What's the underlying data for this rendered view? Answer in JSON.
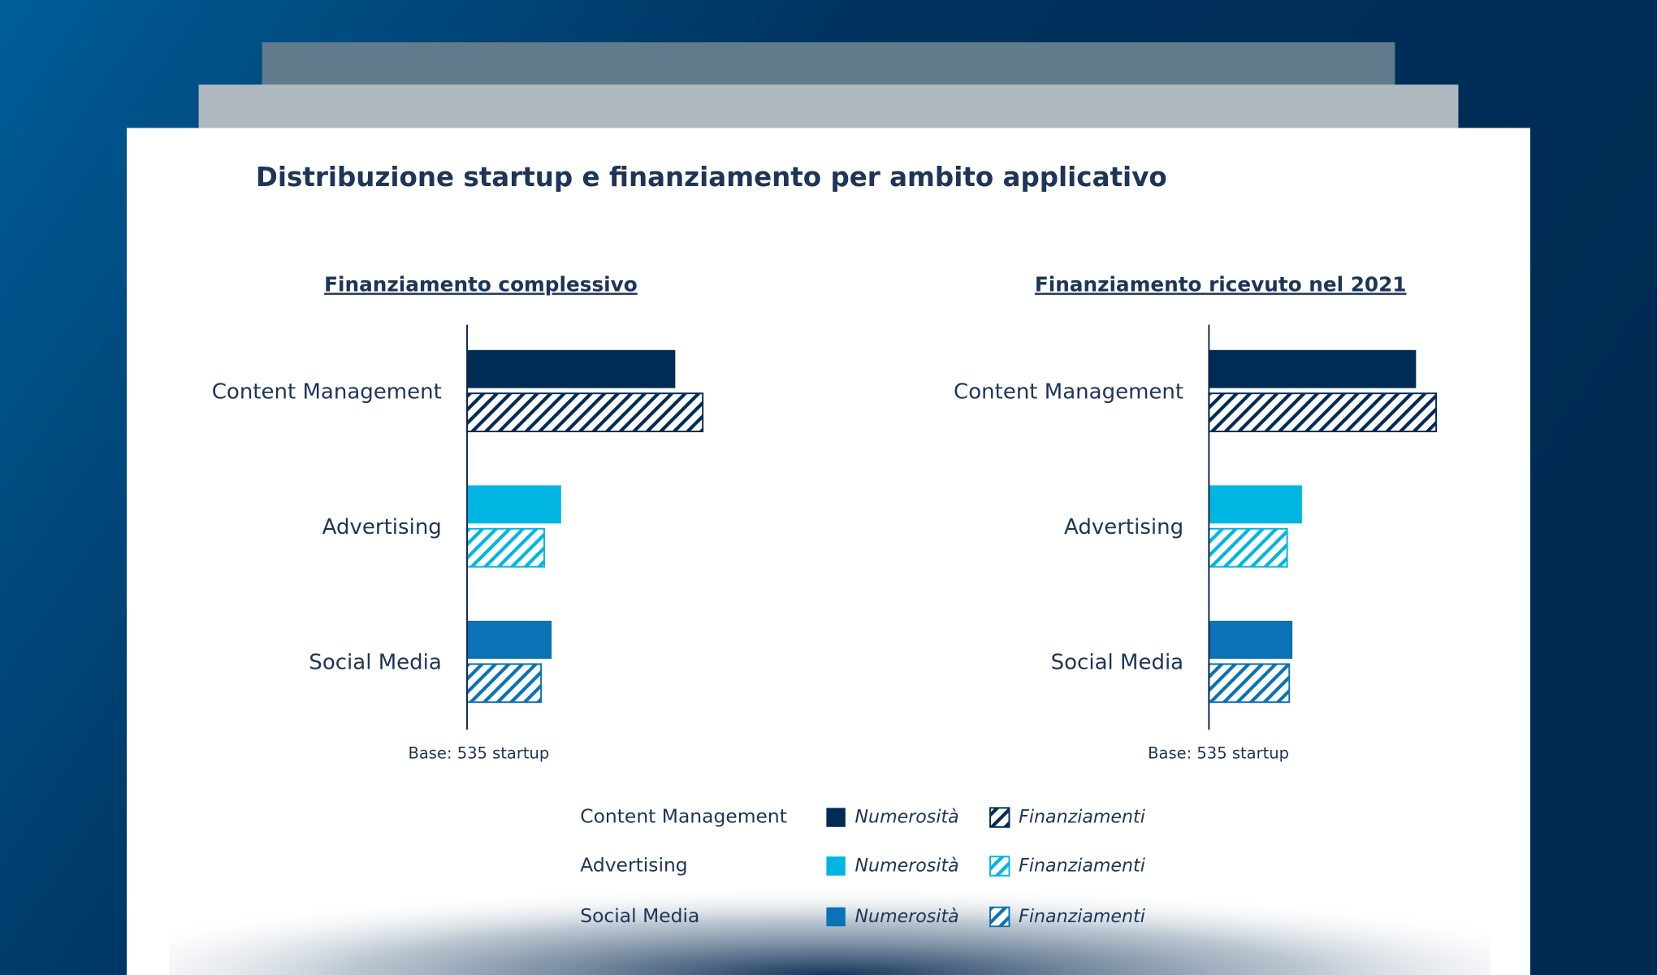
{
  "title": "Distribuzione startup e finanziamento per ambito applicativo",
  "chart_data": [
    {
      "type": "hbar",
      "title": "Finanziamento complessivo",
      "note": "Base: 535 startup",
      "categories": [
        "Content Management",
        "Advertising",
        "Social Media"
      ],
      "colors": [
        "#002b54",
        "#00b5e2",
        "#0a72b5"
      ],
      "series": [
        {
          "name": "Numerosità",
          "hatched": false,
          "values": [
            197,
            89,
            80
          ]
        },
        {
          "name": "Finanziamenti",
          "hatched": true,
          "values": [
            223,
            73,
            70
          ]
        }
      ],
      "xlim": [
        0,
        250
      ]
    },
    {
      "type": "hbar",
      "title": "Finanziamento ricevuto nel 2021",
      "note": "Base: 535 startup",
      "categories": [
        "Content Management",
        "Advertising",
        "Social Media"
      ],
      "colors": [
        "#002b54",
        "#00b5e2",
        "#0a72b5"
      ],
      "series": [
        {
          "name": "Numerosità",
          "hatched": false,
          "values": [
            196,
            88,
            79
          ]
        },
        {
          "name": "Finanziamenti",
          "hatched": true,
          "values": [
            215,
            74,
            76
          ]
        }
      ],
      "xlim": [
        0,
        250
      ]
    }
  ]
}
